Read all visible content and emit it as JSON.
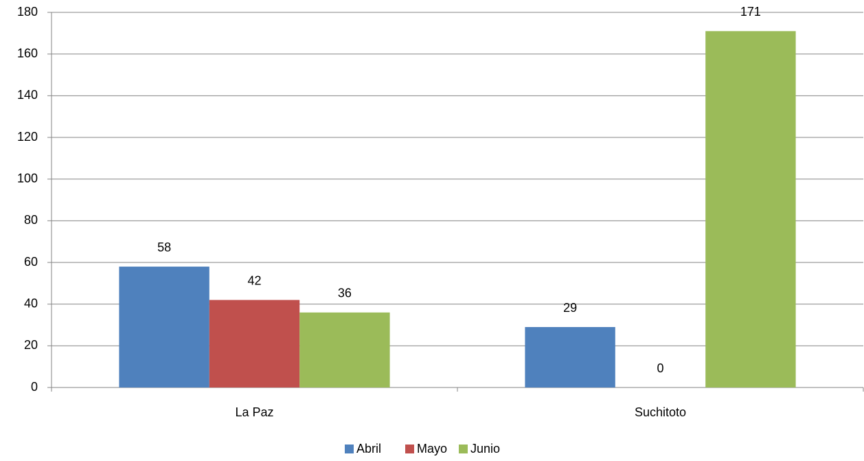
{
  "chart_data": {
    "type": "bar",
    "categories": [
      "La Paz",
      "Suchitoto"
    ],
    "series": [
      {
        "name": "Abril",
        "color": "#4f81bd",
        "values": [
          58,
          29
        ]
      },
      {
        "name": "Mayo",
        "color": "#c0504d",
        "values": [
          42,
          0
        ]
      },
      {
        "name": "Junio",
        "color": "#9bbb59",
        "values": [
          36,
          171
        ]
      }
    ],
    "ylim": [
      0,
      180
    ],
    "yticks": [
      0,
      20,
      40,
      60,
      80,
      100,
      120,
      140,
      160,
      180
    ],
    "grid": true,
    "legend": "bottom",
    "data_labels": true
  }
}
